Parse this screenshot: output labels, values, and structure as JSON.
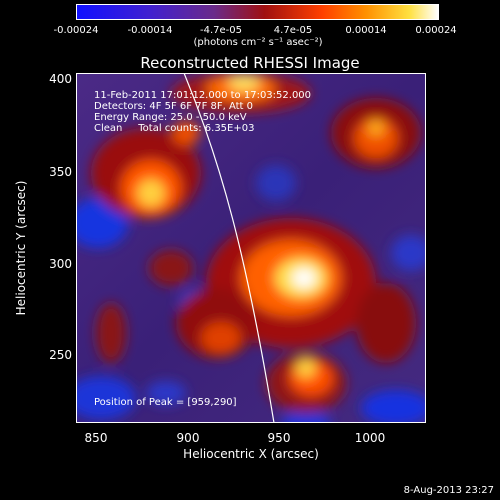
{
  "colorbar": {
    "ticks": [
      "-0.00024",
      "-0.00014",
      "-4.7e-05",
      "4.7e-05",
      "0.00014",
      "0.00024"
    ],
    "unit": "(photons cm⁻² s⁻¹ asec⁻²)"
  },
  "title": "Reconstructed RHESSI Image",
  "info": {
    "time": "11-Feb-2011 17:01:12.000 to 17:03:52.000",
    "detectors": "Detectors: 4F 5F 6F 7F 8F, Att 0",
    "energy": "Energy Range: 25.0 - 50.0 keV",
    "clean": "Clean     Total counts: 6.35E+03",
    "peak": "Position of Peak = [959,290]"
  },
  "axes": {
    "x_label": "Heliocentric X (arcsec)",
    "y_label": "Heliocentric Y (arcsec)",
    "x_ticks": [
      "850",
      "900",
      "950",
      "1000"
    ],
    "y_ticks": [
      "400",
      "350",
      "300",
      "250"
    ]
  },
  "stamp": "8-Aug-2013 23:27",
  "colors": {
    "low": "#1030ff",
    "mid": "#5a2a8a",
    "high": "#ffffff"
  }
}
